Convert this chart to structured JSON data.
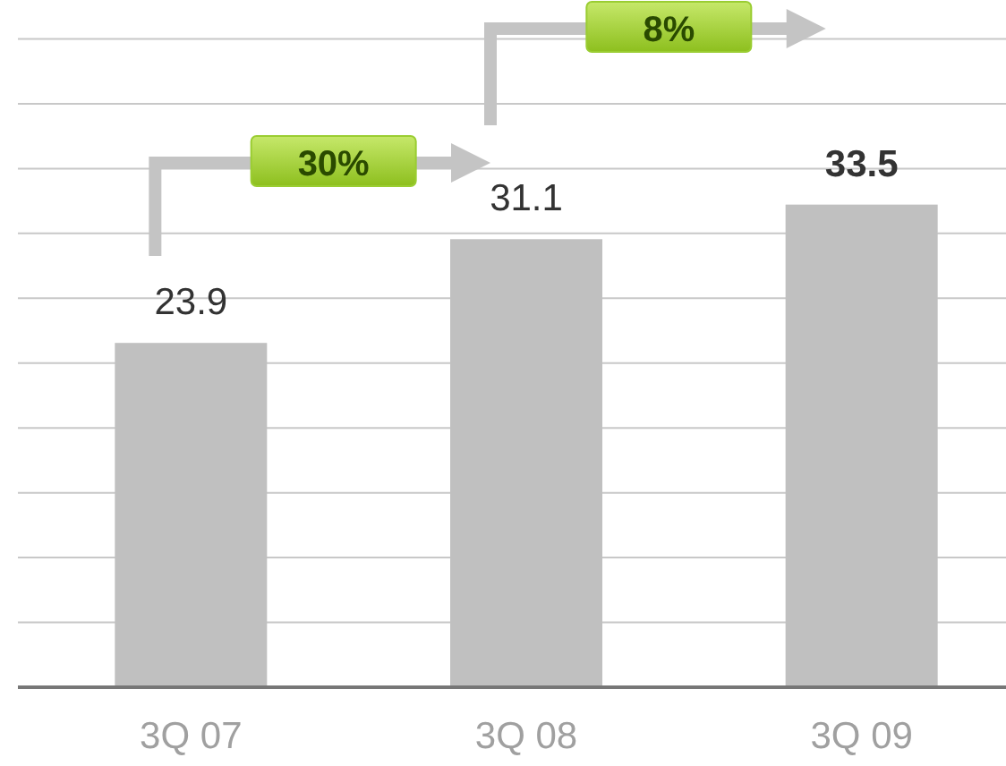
{
  "chart_data": {
    "type": "bar",
    "categories": [
      "3Q 07",
      "3Q 08",
      "3Q 09"
    ],
    "values": [
      23.9,
      31.1,
      33.5
    ],
    "color": "#c0c0c0",
    "data_labels": true,
    "ylim": [
      0,
      47.7
    ],
    "yticks": [
      {
        "value": 4.5,
        "label": null
      },
      {
        "value": 9,
        "label": null
      },
      {
        "value": 13.5,
        "label": null
      },
      {
        "value": 18,
        "label": null
      },
      {
        "value": 22.5,
        "label": null
      },
      {
        "value": 27,
        "label": null
      },
      {
        "value": 31.5,
        "label": null
      },
      {
        "value": 36,
        "label": null
      },
      {
        "value": 40.5,
        "label": null
      },
      {
        "value": 45,
        "label": null
      }
    ],
    "grid": "y",
    "tick_labels": "x",
    "annotations": [
      "30%",
      "8%"
    ]
  }
}
